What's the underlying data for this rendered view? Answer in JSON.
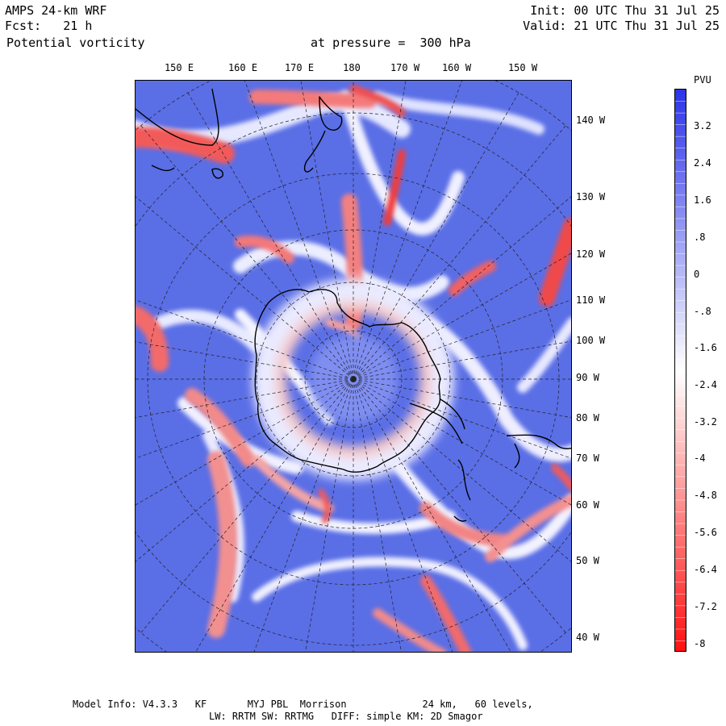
{
  "header": {
    "model": "AMPS 24-km WRF",
    "init": "Init: 00 UTC Thu 31 Jul 25",
    "forecast": "Fcst:   21 h",
    "valid": "Valid: 21 UTC Thu 31 Jul 25",
    "field": "Potential vorticity",
    "level": "at pressure =  300 hPa"
  },
  "map": {
    "projection": "polar-stereographic-south",
    "ocean_color": "#5a6ee6",
    "longitude_labels": [
      "150 E",
      "160 E",
      "170 E",
      "180",
      "170 W",
      "160 W",
      "150 W"
    ],
    "latitude_labels": [
      "140 W",
      "130 W",
      "120 W",
      "110 W",
      "100 W",
      "90 W",
      "80 W",
      "70 W",
      "60 W",
      "50 W",
      "40 W"
    ]
  },
  "colorbar": {
    "unit": "PVU",
    "tick_labels": [
      "3.2",
      "2.4",
      "1.6",
      ".8",
      "0",
      "-.8",
      "-1.6",
      "-2.4",
      "-3.2",
      "-4",
      "-4.8",
      "-5.6",
      "-6.4",
      "-7.2",
      "-8"
    ],
    "top_color": "#2b33e8",
    "mid_color": "#ffffff",
    "bottom_color": "#ff1010"
  },
  "footer": {
    "line1": "Model Info: V4.3.3   KF       MYJ PBL  Morrison             24 km,   60 levels,",
    "line2": "LW: RRTM SW: RRTMG   DIFF: simple KM: 2D Smagor"
  }
}
